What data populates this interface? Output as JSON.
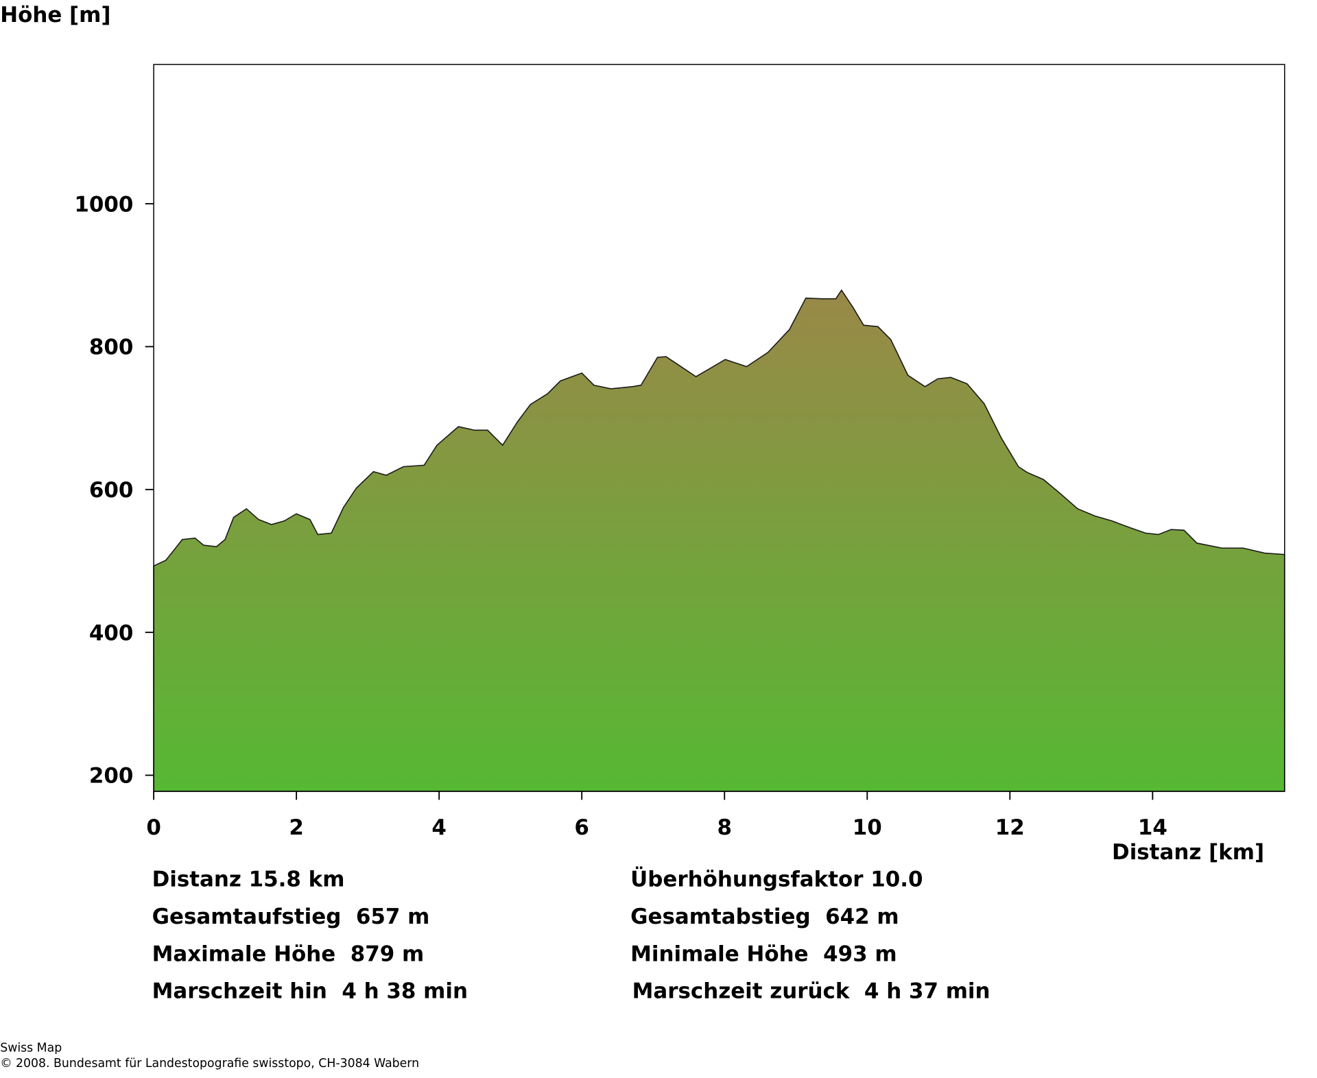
{
  "chart_data": {
    "type": "area",
    "y_label": "Höhe [m]",
    "x_label": "Distanz [km]",
    "x": [
      0,
      0.17,
      0.29,
      0.4,
      0.58,
      0.7,
      0.88,
      1.0,
      1.12,
      1.3,
      1.47,
      1.65,
      1.83,
      2.0,
      2.19,
      2.3,
      2.49,
      2.66,
      2.84,
      3.08,
      3.26,
      3.5,
      3.79,
      3.97,
      4.27,
      4.5,
      4.68,
      4.89,
      5.1,
      5.28,
      5.52,
      5.7,
      6.0,
      6.17,
      6.41,
      6.71,
      6.83,
      7.06,
      7.18,
      7.42,
      7.6,
      7.84,
      8.01,
      8.31,
      8.61,
      8.91,
      9.14,
      9.36,
      9.56,
      9.64,
      9.8,
      9.95,
      10.15,
      10.33,
      10.57,
      10.81,
      10.99,
      11.17,
      11.4,
      11.64,
      11.88,
      12.12,
      12.24,
      12.47,
      12.71,
      12.95,
      13.19,
      13.43,
      13.67,
      13.9,
      14.08,
      14.26,
      14.44,
      14.62,
      14.97,
      15.27,
      15.57,
      15.85
    ],
    "values": [
      493,
      501,
      516,
      530,
      532,
      522,
      520,
      530,
      561,
      573,
      558,
      551,
      556,
      566,
      558,
      537,
      539,
      575,
      602,
      625,
      620,
      632,
      634,
      662,
      688,
      683,
      683,
      662,
      695,
      719,
      734,
      752,
      763,
      746,
      741,
      744,
      746,
      785,
      786,
      770,
      758,
      772,
      782,
      772,
      792,
      824,
      868,
      867,
      867,
      879,
      855,
      830,
      828,
      810,
      760,
      744,
      755,
      757,
      748,
      720,
      672,
      632,
      624,
      614,
      594,
      573,
      563,
      556,
      547,
      539,
      537,
      544,
      543,
      525,
      518,
      518,
      511,
      509
    ],
    "colors": [
      "#9a8848",
      "#56b833"
    ],
    "line_color": "#1a1a1a",
    "xlim": [
      0,
      15.85
    ],
    "ylim": [
      177.5,
      1195
    ],
    "xticks": [
      0,
      2,
      4,
      6,
      8,
      10,
      12,
      14
    ],
    "yticks": [
      200,
      400,
      600,
      800,
      1000
    ],
    "info": [
      [
        "Distanz 15.8 km",
        "Überhöhungsfaktor 10.0"
      ],
      [
        "Gesamtaufstieg  657 m",
        "Gesamtabstieg  642 m"
      ],
      [
        "Maximale Höhe  879 m",
        "Minimale Höhe  493 m"
      ],
      [
        "Marschzeit hin  4 h 38 min",
        "Marschzeit zurück  4 h 37 min"
      ]
    ],
    "footer": [
      "Swiss Map",
      "© 2008. Bundesamt für Landestopografie swisstopo, CH-3084 Wabern"
    ]
  }
}
